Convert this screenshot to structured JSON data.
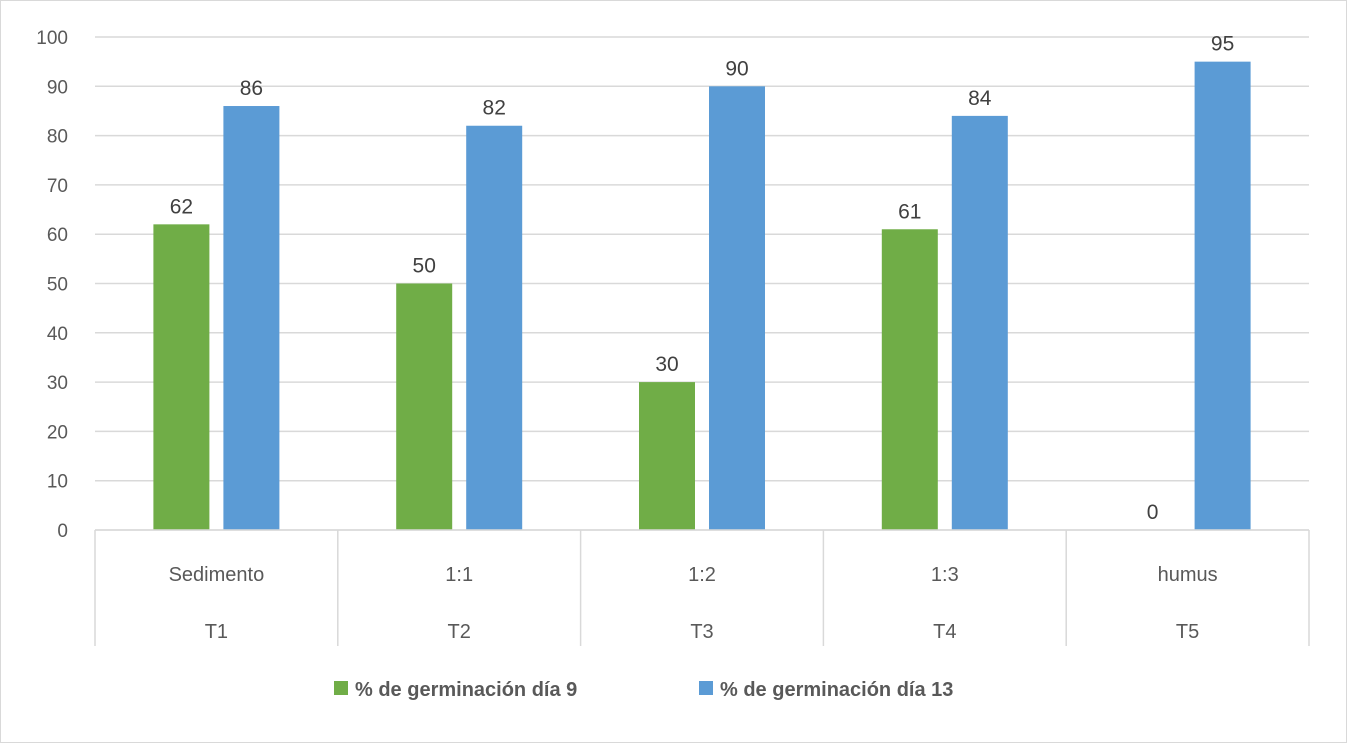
{
  "chart_data": {
    "type": "bar",
    "categories": [
      "Sedimento",
      "1:1",
      "1:2",
      "1:3",
      "humus"
    ],
    "categories_secondary": [
      "T1",
      "T2",
      "T3",
      "T4",
      "T5"
    ],
    "series": [
      {
        "name": "% de germinación día 9",
        "values": [
          62,
          50,
          30,
          61,
          0
        ],
        "color": "#70ad47"
      },
      {
        "name": "% de germinación día 13",
        "values": [
          86,
          82,
          90,
          84,
          95
        ],
        "color": "#5b9bd5"
      }
    ],
    "title": "",
    "xlabel": "",
    "ylabel": "",
    "ylim": [
      0,
      100
    ],
    "yticks": [
      0,
      10,
      20,
      30,
      40,
      50,
      60,
      70,
      80,
      90,
      100
    ],
    "grid": true,
    "legend_position": "bottom",
    "data_labels": true
  }
}
